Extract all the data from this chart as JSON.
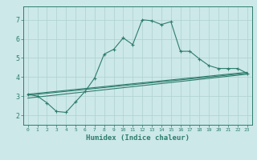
{
  "xlabel": "Humidex (Indice chaleur)",
  "background_color": "#cce8e8",
  "line_color": "#2e7d6e",
  "xlim": [
    -0.5,
    23.5
  ],
  "ylim": [
    1.5,
    7.7
  ],
  "xticks": [
    0,
    1,
    2,
    3,
    4,
    5,
    6,
    7,
    8,
    9,
    10,
    11,
    12,
    13,
    14,
    15,
    16,
    17,
    18,
    19,
    20,
    21,
    22,
    23
  ],
  "yticks": [
    2,
    3,
    4,
    5,
    6,
    7
  ],
  "grid_color": "#afd0d0",
  "series1_x": [
    0,
    1,
    2,
    3,
    4,
    5,
    6,
    7,
    8,
    9,
    10,
    11,
    12,
    13,
    14,
    15,
    16,
    17,
    18,
    19,
    20,
    21,
    22,
    23
  ],
  "series1_y": [
    3.1,
    3.0,
    2.65,
    2.2,
    2.15,
    2.7,
    3.25,
    3.95,
    5.2,
    5.45,
    6.05,
    5.7,
    7.0,
    6.95,
    6.75,
    6.9,
    5.35,
    5.35,
    4.95,
    4.6,
    4.45,
    4.45,
    4.45,
    4.2
  ],
  "series2_x": [
    0,
    23
  ],
  "series2_y": [
    2.9,
    4.15
  ],
  "series3_x": [
    0,
    23
  ],
  "series3_y": [
    3.1,
    4.25
  ],
  "series4_x": [
    0,
    23
  ],
  "series4_y": [
    3.05,
    4.2
  ]
}
